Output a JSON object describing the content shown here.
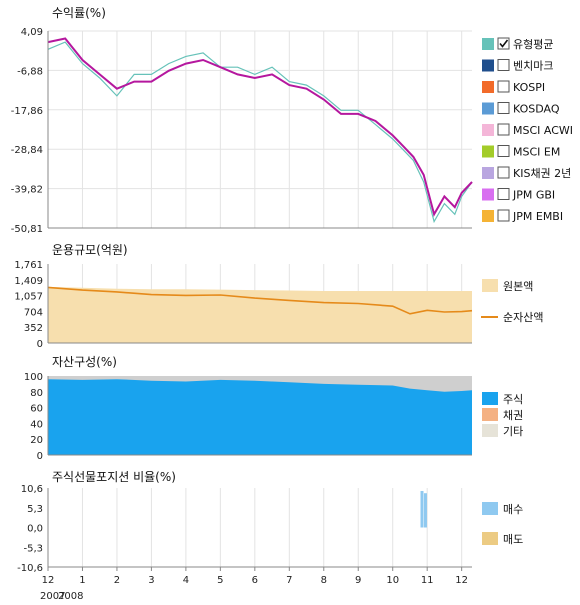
{
  "colors": {
    "fund": "#b5179e",
    "bench": "#66c2b9",
    "principal_fill": "#f7dfae",
    "nav_line": "#e58a1a",
    "stock": "#19a3ee",
    "bond": "#f4b183",
    "other": "#cfcfcf",
    "buy": "#8fc9f0",
    "sell": "#eccb83"
  },
  "x_axis": {
    "months": [
      "12",
      "1",
      "2",
      "3",
      "4",
      "5",
      "6",
      "7",
      "8",
      "9",
      "10",
      "11",
      "12"
    ],
    "years": [
      "2007",
      "2008"
    ]
  },
  "chart_data": [
    {
      "type": "line",
      "title": "수익률(%)",
      "y_ticks": [
        "4,09",
        "-6,88",
        "-17,86",
        "-28,84",
        "-39,82",
        "-50,81"
      ],
      "ylim": [
        -50.81,
        4.09
      ],
      "x": [
        0,
        0.5,
        1,
        1.5,
        2,
        2.5,
        3,
        3.5,
        4,
        4.5,
        5,
        5.5,
        6,
        6.5,
        7,
        7.5,
        8,
        8.5,
        9,
        9.5,
        10,
        10.3,
        10.6,
        10.9,
        11.2,
        11.5,
        11.8,
        12,
        12.3
      ],
      "series": [
        {
          "name": "유형평균",
          "color": "#66c2b9",
          "values": [
            -1,
            1,
            -5,
            -9,
            -14,
            -8,
            -8,
            -5,
            -3,
            -2,
            -6,
            -6,
            -8,
            -6,
            -10,
            -11,
            -14,
            -18,
            -18,
            -22,
            -26,
            -29,
            -32,
            -38,
            -49,
            -44,
            -47,
            -42,
            -38
          ]
        },
        {
          "name": "",
          "color": "#b5179e",
          "values": [
            1,
            2,
            -4,
            -8,
            -12,
            -10,
            -10,
            -7,
            -5,
            -4,
            -6,
            -8,
            -9,
            -8,
            -11,
            -12,
            -15,
            -19,
            -19,
            -21,
            -25,
            -28,
            -31,
            -36,
            -47,
            -42,
            -45,
            -41,
            -38
          ]
        }
      ]
    },
    {
      "type": "area",
      "title": "운용규모(억원)",
      "y_ticks": [
        "1,761",
        "1,409",
        "1,057",
        "704",
        "352",
        "0"
      ],
      "ylim": [
        0,
        1761
      ],
      "x": [
        0,
        1,
        2,
        3,
        4,
        5,
        6,
        7,
        8,
        9,
        10,
        10.5,
        11,
        11.5,
        12,
        12.3
      ],
      "series": [
        {
          "name": "원본액",
          "color": "#f7dfae",
          "values": [
            1250,
            1230,
            1210,
            1200,
            1200,
            1190,
            1180,
            1170,
            1160,
            1160,
            1160,
            1160,
            1160,
            1160,
            1160,
            1160
          ]
        },
        {
          "name": "순자산액",
          "color": "#e58a1a",
          "values": [
            1240,
            1180,
            1140,
            1080,
            1060,
            1070,
            1000,
            950,
            900,
            880,
            820,
            650,
            730,
            690,
            700,
            720
          ]
        }
      ]
    },
    {
      "type": "area",
      "title": "자산구성(%)",
      "y_ticks": [
        "100",
        "80",
        "60",
        "40",
        "20",
        "0"
      ],
      "ylim": [
        0,
        100
      ],
      "x": [
        0,
        1,
        2,
        3,
        4,
        5,
        6,
        7,
        8,
        9,
        10,
        10.5,
        11,
        11.5,
        12,
        12.3
      ],
      "series": [
        {
          "name": "주식",
          "color": "#19a3ee",
          "values": [
            96,
            95,
            96,
            94,
            93,
            95,
            94,
            92,
            90,
            89,
            88,
            84,
            82,
            80,
            81,
            82
          ]
        },
        {
          "name": "채권",
          "color": "#f4b183",
          "values": [
            0,
            0,
            0,
            0,
            0,
            0,
            0,
            0,
            0,
            0,
            0,
            0,
            0,
            0,
            0,
            0
          ]
        },
        {
          "name": "기타",
          "color": "#cfcfcf",
          "values": [
            4,
            5,
            4,
            6,
            7,
            5,
            6,
            8,
            10,
            11,
            12,
            16,
            18,
            20,
            19,
            18
          ]
        }
      ]
    },
    {
      "type": "bar",
      "title": "주식선물포지션 비율(%)",
      "y_ticks": [
        "10,6",
        "5,3",
        "0,0",
        "-5,3",
        "-10,6"
      ],
      "ylim": [
        -10.6,
        10.6
      ],
      "bars": [
        {
          "x": 10.85,
          "value": 9.8,
          "series": "매수"
        },
        {
          "x": 10.95,
          "value": 9.2,
          "series": "매수"
        }
      ],
      "series": [
        {
          "name": "매수",
          "color": "#8fc9f0"
        },
        {
          "name": "매도",
          "color": "#eccb83"
        }
      ]
    }
  ],
  "legend_return": [
    {
      "label": "유형평균",
      "color": "#66c2b9",
      "checked": true
    },
    {
      "label": "벤치마크",
      "color": "#1f4e8c",
      "checked": false
    },
    {
      "label": "KOSPI",
      "color": "#f26b2a",
      "checked": false
    },
    {
      "label": "KOSDAQ",
      "color": "#5b9bd5",
      "checked": false
    },
    {
      "label": "MSCI ACWI",
      "color": "#f4b6d8",
      "checked": false
    },
    {
      "label": "MSCI EM",
      "color": "#a3cc29",
      "checked": false
    },
    {
      "label": "KIS채권 2년",
      "color": "#b9a6e0",
      "checked": false
    },
    {
      "label": "JPM GBI",
      "color": "#d86ef0",
      "checked": false
    },
    {
      "label": "JPM EMBI",
      "color": "#f5b335",
      "checked": false
    }
  ]
}
